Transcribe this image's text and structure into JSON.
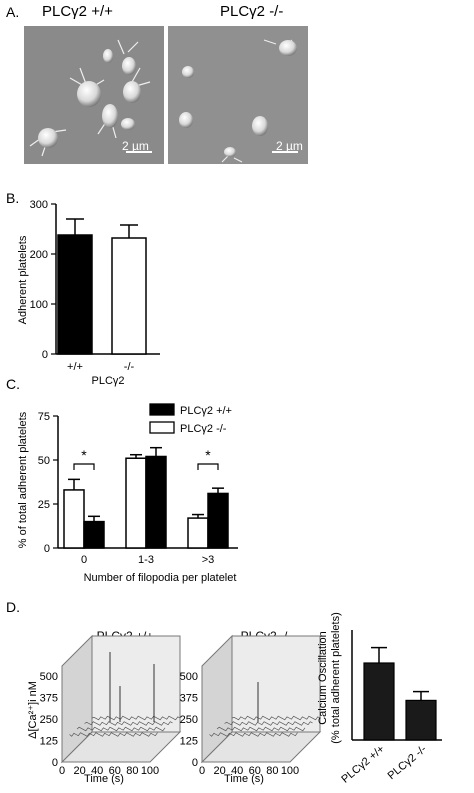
{
  "panelA": {
    "letter": "A.",
    "left_title": "PLCγ2 +/+",
    "right_title": "PLCγ2 -/-",
    "scale_left": "2 µm",
    "scale_right": "2 µm"
  },
  "panelB": {
    "letter": "B.",
    "chart_data": {
      "type": "bar",
      "categories": [
        "+/+",
        "-/-"
      ],
      "values": [
        238,
        232
      ],
      "errors": [
        32,
        26
      ],
      "fills": [
        "#000000",
        "#ffffff"
      ],
      "ylabel": "Adherent platelets",
      "xlabel": "PLCγ2",
      "ylim": [
        0,
        300
      ],
      "yticks": [
        "0",
        "100",
        "200",
        "300"
      ]
    }
  },
  "panelC": {
    "letter": "C.",
    "chart_data": {
      "type": "bar",
      "categories": [
        "0",
        "1-3",
        ">3"
      ],
      "series": [
        {
          "name": "PLCγ2 -/-",
          "fill": "#ffffff",
          "values": [
            33,
            51,
            17
          ],
          "errors": [
            6,
            2,
            2
          ]
        },
        {
          "name": "PLCγ2 +/+",
          "fill": "#000000",
          "values": [
            15,
            52,
            31
          ],
          "errors": [
            3,
            5,
            3
          ]
        }
      ],
      "ylabel": "% of total adherent platelets",
      "xlabel": "Number of filopodia per platelet",
      "ylim": [
        0,
        75
      ],
      "yticks": [
        "0",
        "25",
        "50",
        "75"
      ],
      "annotations": [
        "*",
        "*"
      ],
      "legend": [
        "PLCγ2 +/+",
        "PLCγ2 -/-"
      ]
    }
  },
  "panelD": {
    "letter": "D.",
    "trace_left_title": "PLCγ2 +/+",
    "trace_right_title": "PLCγ2 -/-",
    "trace_ylabel": "Δ[Ca²⁺]i nM",
    "trace_yticks": [
      "500",
      "375",
      "250",
      "125",
      "0"
    ],
    "trace_xticks": [
      "0",
      "20",
      "40",
      "60",
      "80",
      "100"
    ],
    "trace_xlabel": "Time (s)",
    "chart_data": {
      "type": "bar",
      "categories": [
        "PLCγ2 +/+",
        "PLCγ2 -/-"
      ],
      "values": [
        35,
        18
      ],
      "errors": [
        7,
        4
      ],
      "ylabel": "Calcium Oscillation (% total adherent platelets)",
      "ylabel_lines": [
        "Calcium Oscillation",
        "(% total adherent platelets)"
      ],
      "ylim": [
        0,
        50
      ]
    }
  }
}
